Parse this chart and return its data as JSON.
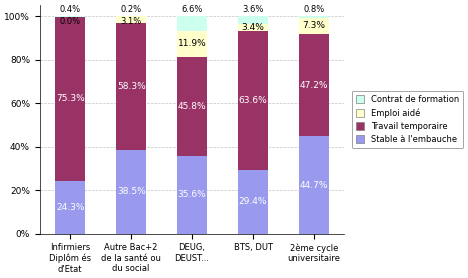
{
  "categories": [
    "Infirmiers\nDiplôm és\nd'Etat",
    "Autre Bac+2\nde la santé ou\ndu social",
    "DEUG,\nDEUST...",
    "BTS, DUT",
    "2ème cycle\nuniversitaire"
  ],
  "stable": [
    24.3,
    38.5,
    35.6,
    29.4,
    44.7
  ],
  "travail_temp": [
    75.3,
    58.3,
    45.8,
    63.6,
    47.2
  ],
  "emploi_aide": [
    0.0,
    3.1,
    11.9,
    3.4,
    7.3
  ],
  "contrat_form": [
    0.4,
    0.2,
    6.6,
    3.6,
    0.8
  ],
  "top_label1": [
    "0.4%",
    "0.2%",
    "6.6%",
    "3.6%",
    "0.8%"
  ],
  "top_label2": [
    "0.0%",
    "3.1%",
    "",
    "",
    ""
  ],
  "travail_labels": [
    "75.3%",
    "58.3%",
    "45.8%",
    "63.6%",
    "47.2%"
  ],
  "stable_labels": [
    "24.3%",
    "38.5%",
    "35.6%",
    "29.4%",
    "44.7%"
  ],
  "emploi_labels": [
    "",
    "",
    "11.9%",
    "3.4%",
    "7.3%"
  ],
  "color_stable": "#9999EE",
  "color_travail": "#993366",
  "color_emploi": "#FFFFCC",
  "color_contrat": "#CCFFEE",
  "legend_labels": [
    "Contrat de formation",
    "Emploi aidé",
    "Travail temporaire",
    "Stable à l'embauche"
  ],
  "ylabel_ticks": [
    "0%",
    "20%",
    "40%",
    "60%",
    "80%",
    "100%"
  ],
  "ylim": [
    0,
    105
  ],
  "figsize": [
    4.68,
    2.78
  ],
  "dpi": 100
}
